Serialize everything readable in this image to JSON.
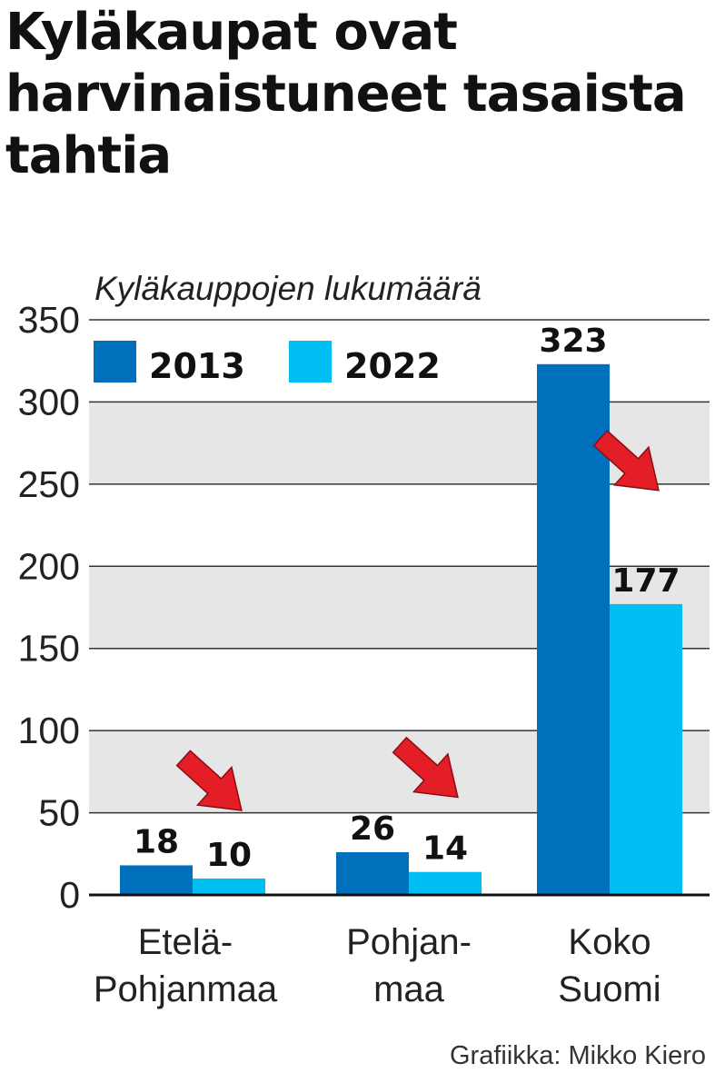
{
  "title": "Kyläkaupat ovat harvinaistuneet tasaista tahtia",
  "credit": "Grafiikka: Mikko Kiero",
  "colors": {
    "series_2013": "#0070bd",
    "series_2022": "#00bdf2",
    "arrow": "#e41e26",
    "band": "#e6e6e6"
  },
  "chart_data": {
    "type": "bar",
    "ylabel": "Kyläkauppojen lukumäärä",
    "ylim": [
      0,
      350
    ],
    "yticks": [
      0,
      50,
      100,
      150,
      200,
      250,
      300,
      350
    ],
    "grid": true,
    "legend_position": "top-left",
    "categories": [
      {
        "lines": [
          "Etelä-",
          "Pohjanmaa"
        ]
      },
      {
        "lines": [
          "Pohjan-",
          "maa"
        ]
      },
      {
        "lines": [
          "Koko",
          "Suomi"
        ]
      }
    ],
    "series": [
      {
        "name": "2013",
        "values": [
          18,
          26,
          323
        ]
      },
      {
        "name": "2022",
        "values": [
          10,
          14,
          177
        ]
      }
    ],
    "annotations": "red downward arrows between 2013 and 2022 bars"
  }
}
